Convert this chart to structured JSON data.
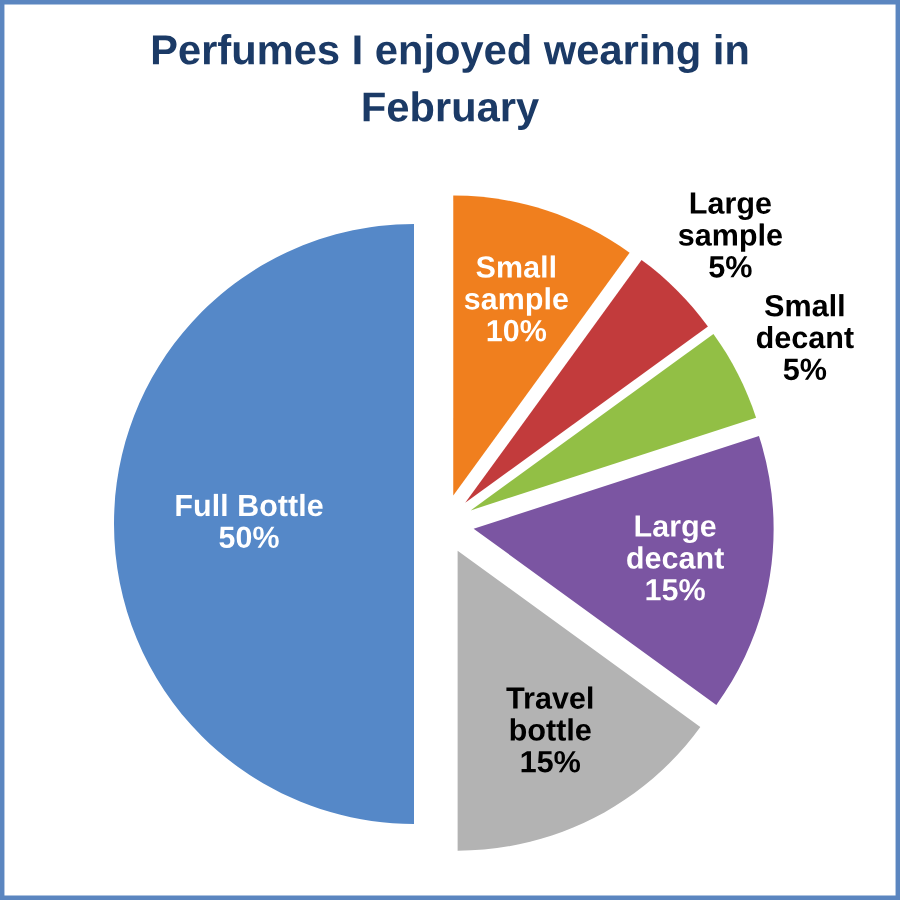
{
  "chart_data": {
    "type": "pie",
    "title": "Perfumes I enjoyed wearing in February",
    "categories": [
      "Small sample",
      "Large sample",
      "Small decant",
      "Large decant",
      "Travel bottle",
      "Full Bottle"
    ],
    "values": [
      10,
      5,
      5,
      15,
      15,
      50
    ],
    "value_labels": [
      "10%",
      "5%",
      "5%",
      "15%",
      "15%",
      "50%"
    ],
    "colors": [
      "#f07f1e",
      "#c23b3c",
      "#92bf45",
      "#7b55a2",
      "#b3b3b3",
      "#5588c8"
    ]
  }
}
